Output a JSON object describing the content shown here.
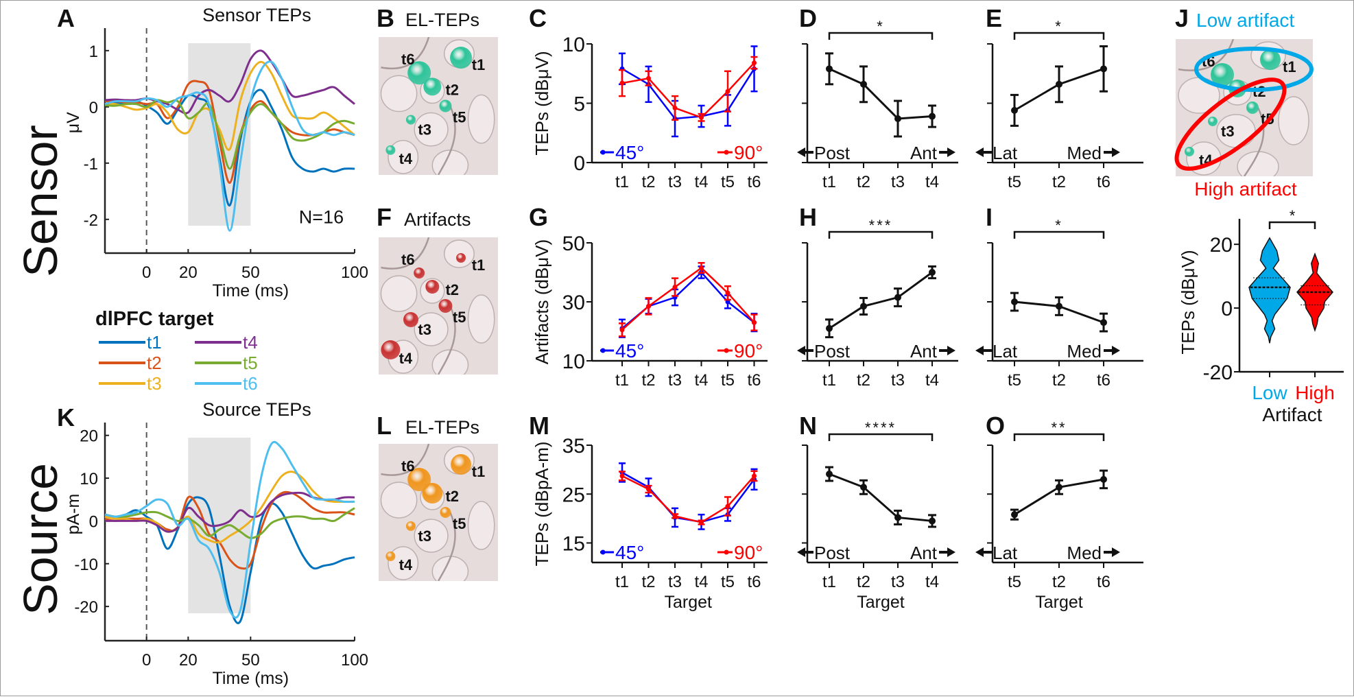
{
  "figure": {
    "row_labels": {
      "sensor": "Sensor",
      "source": "Source"
    },
    "colors": {
      "t1": "#0072BD",
      "t2": "#D95319",
      "t3": "#EDB120",
      "t4": "#7E2F8E",
      "t5": "#77AC30",
      "t6": "#4DBEEE",
      "deg45": "#0000FF",
      "deg90": "#FF0000",
      "low_artifact": "#00A8E8",
      "high_artifact": "#FF0000",
      "teps_sphere": "#2EC49A",
      "artifact_sphere": "#C83232",
      "source_sphere": "#F0961E",
      "shade": "#E3E3E3",
      "brain_surface": "#E2D6D6"
    },
    "legend": {
      "title": "dlPFC target",
      "items": [
        "t1",
        "t4",
        "t2",
        "t5",
        "t3",
        "t6"
      ]
    },
    "brain_panels": {
      "B": {
        "letter": "B",
        "title": "EL-TEPs",
        "targets": [
          "t1",
          "t2",
          "t3",
          "t4",
          "t5",
          "t6"
        ]
      },
      "F": {
        "letter": "F",
        "title": "Artifacts",
        "targets": [
          "t1",
          "t2",
          "t3",
          "t4",
          "t5",
          "t6"
        ]
      },
      "L": {
        "letter": "L",
        "title": "EL-TEPs",
        "targets": [
          "t1",
          "t2",
          "t3",
          "t4",
          "t5",
          "t6"
        ]
      },
      "J": {
        "letter": "J",
        "title_low": "Low artifact",
        "title_high": "High artifact",
        "targets": [
          "t1",
          "t2",
          "t3",
          "t4",
          "t5",
          "t6"
        ]
      }
    }
  },
  "chart_data": [
    {
      "id": "A",
      "type": "line",
      "title": "Sensor TEPs",
      "xlabel": "Time (ms)",
      "ylabel": "μV",
      "xlim": [
        -20,
        100
      ],
      "ylim": [
        -2.6,
        1.4
      ],
      "xticks": [
        0,
        20,
        50,
        100
      ],
      "yticks": [
        -2,
        -1,
        0,
        1
      ],
      "shaded_window": [
        20,
        50
      ],
      "stim_line_x": 0,
      "annotation": "N=16",
      "x": [
        -20,
        -15,
        -10,
        -5,
        0,
        5,
        10,
        15,
        20,
        25,
        30,
        35,
        40,
        45,
        50,
        55,
        60,
        65,
        70,
        75,
        80,
        85,
        90,
        95,
        100
      ],
      "series": [
        {
          "name": "t1",
          "values": [
            0.05,
            0.08,
            0.06,
            0.1,
            0.02,
            -0.1,
            -0.3,
            -0.05,
            0.2,
            0.15,
            0.0,
            -0.9,
            -1.75,
            -0.6,
            0.1,
            0.3,
            0.0,
            -0.4,
            -0.9,
            -1.1,
            -1.15,
            -1.1,
            -1.15,
            -1.1,
            -1.1
          ]
        },
        {
          "name": "t2",
          "values": [
            0.1,
            0.1,
            0.08,
            0.08,
            0.05,
            0.05,
            -0.2,
            0.0,
            0.4,
            0.45,
            0.3,
            -0.6,
            -1.35,
            -0.5,
            -0.05,
            0.1,
            -0.1,
            -0.3,
            -0.45,
            -0.5,
            -0.5,
            -0.45,
            -0.4,
            -0.45,
            -0.5
          ]
        },
        {
          "name": "t3",
          "values": [
            0.05,
            0.05,
            0.0,
            -0.05,
            -0.02,
            0.05,
            -0.1,
            -0.4,
            -0.45,
            -0.1,
            -0.05,
            -0.4,
            -0.75,
            0.1,
            0.6,
            0.8,
            0.6,
            0.2,
            -0.15,
            -0.2,
            -0.2,
            -0.1,
            -0.2,
            -0.35,
            -0.5
          ]
        },
        {
          "name": "t4",
          "values": [
            0.12,
            0.13,
            0.12,
            0.12,
            0.15,
            0.1,
            0.05,
            -0.05,
            -0.1,
            0.2,
            0.3,
            0.2,
            0.1,
            0.4,
            0.85,
            1.0,
            0.8,
            0.5,
            0.2,
            0.2,
            0.25,
            0.3,
            0.35,
            0.2,
            0.05
          ]
        },
        {
          "name": "t5",
          "values": [
            0.03,
            0.02,
            0.05,
            0.05,
            0.0,
            0.12,
            0.08,
            0.1,
            -0.2,
            -0.1,
            0.05,
            -0.5,
            -1.1,
            -0.5,
            -0.1,
            0.05,
            -0.1,
            -0.3,
            -0.55,
            -0.6,
            -0.55,
            -0.45,
            -0.3,
            -0.25,
            -0.3
          ]
        },
        {
          "name": "t6",
          "values": [
            0.05,
            0.1,
            0.1,
            0.1,
            0.15,
            0.12,
            0.0,
            0.15,
            0.2,
            0.25,
            0.05,
            -1.0,
            -2.2,
            -1.0,
            0.1,
            0.65,
            0.8,
            0.5,
            0.0,
            -0.4,
            -0.5,
            -0.45,
            -0.5,
            -0.45,
            -0.5
          ]
        }
      ]
    },
    {
      "id": "K",
      "type": "line",
      "title": "Source TEPs",
      "xlabel": "Time (ms)",
      "ylabel": "pA-m",
      "xlim": [
        -20,
        100
      ],
      "ylim": [
        -28,
        23
      ],
      "xticks": [
        0,
        20,
        50,
        100
      ],
      "yticks": [
        -20,
        -10,
        0,
        10,
        20
      ],
      "shaded_window": [
        20,
        50
      ],
      "stim_line_x": 0,
      "x": [
        -20,
        -15,
        -10,
        -5,
        0,
        5,
        10,
        15,
        20,
        25,
        30,
        35,
        40,
        45,
        50,
        55,
        60,
        65,
        70,
        75,
        80,
        85,
        90,
        95,
        100
      ],
      "series": [
        {
          "name": "t1",
          "values": [
            1.5,
            1.0,
            1.5,
            2.5,
            1.0,
            -1.0,
            -6.5,
            -2.0,
            4.0,
            5.5,
            3.0,
            -8.0,
            -20.0,
            -23.5,
            -12.0,
            0.0,
            4.0,
            2.0,
            -3.0,
            -8.0,
            -11.0,
            -10.5,
            -10.0,
            -9.0,
            -8.5
          ]
        },
        {
          "name": "t2",
          "values": [
            0.5,
            0.0,
            0.5,
            0.5,
            0.5,
            -0.5,
            -2.0,
            -1.5,
            5.5,
            3.0,
            -3.0,
            -5.0,
            -9.0,
            -11.0,
            -10.0,
            -2.0,
            4.0,
            6.5,
            6.5,
            5.0,
            3.0,
            2.0,
            2.0,
            2.0,
            1.5
          ]
        },
        {
          "name": "t3",
          "values": [
            1.0,
            0.5,
            0.5,
            0.0,
            0.5,
            -0.5,
            -2.5,
            -1.5,
            1.0,
            -3.0,
            -4.5,
            -5.0,
            -3.5,
            -2.0,
            0.0,
            3.0,
            7.0,
            10.5,
            11.5,
            10.0,
            7.0,
            5.0,
            4.5,
            4.5,
            4.5
          ]
        },
        {
          "name": "t4",
          "values": [
            0.0,
            0.0,
            0.0,
            0.0,
            0.0,
            -1.0,
            -2.5,
            -1.5,
            3.0,
            1.0,
            -1.0,
            -1.0,
            0.0,
            2.5,
            1.0,
            1.5,
            4.5,
            6.0,
            6.5,
            6.5,
            5.5,
            5.0,
            5.0,
            5.5,
            5.5
          ]
        },
        {
          "name": "t5",
          "values": [
            1.5,
            1.0,
            1.0,
            1.5,
            2.0,
            2.0,
            1.0,
            0.0,
            0.5,
            -1.0,
            -3.5,
            -2.0,
            -1.0,
            -2.5,
            -4.0,
            -3.0,
            -0.5,
            0.5,
            1.0,
            1.0,
            0.5,
            0.5,
            0.0,
            1.5,
            3.0
          ]
        },
        {
          "name": "t6",
          "values": [
            1.5,
            1.0,
            1.5,
            2.0,
            3.5,
            5.0,
            4.0,
            -1.0,
            0.5,
            -4.5,
            -6.5,
            -12.0,
            -21.0,
            -21.0,
            -5.0,
            10.0,
            18.0,
            17.0,
            13.0,
            9.0,
            5.5,
            5.0,
            5.0,
            4.5,
            4.5
          ]
        }
      ]
    },
    {
      "id": "C",
      "type": "line",
      "ylabel": "TEPs (dBμV)",
      "categories": [
        "t1",
        "t2",
        "t3",
        "t4",
        "t5",
        "t6"
      ],
      "ylim": [
        0,
        10
      ],
      "yticks": [
        0,
        5,
        10
      ],
      "legend": [
        "45°",
        "90°"
      ],
      "series": [
        {
          "name": "45°",
          "values": [
            7.9,
            6.6,
            3.7,
            3.9,
            4.4,
            7.9
          ],
          "err": [
            1.3,
            1.5,
            1.5,
            0.9,
            1.3,
            1.9
          ]
        },
        {
          "name": "90°",
          "values": [
            6.7,
            7.1,
            4.6,
            3.8,
            6.0,
            8.4
          ],
          "err": [
            1.1,
            0.6,
            1.0,
            0.3,
            1.7,
            0.5
          ]
        }
      ]
    },
    {
      "id": "G",
      "type": "line",
      "ylabel": "Artifacts (dBμV)",
      "categories": [
        "t1",
        "t2",
        "t3",
        "t4",
        "t5",
        "t6"
      ],
      "ylim": [
        10,
        50
      ],
      "yticks": [
        10,
        30,
        50
      ],
      "legend": [
        "45°",
        "90°"
      ],
      "series": [
        {
          "name": "45°",
          "values": [
            21.0,
            28.5,
            31.5,
            40.0,
            30.0,
            23.0
          ],
          "err": [
            3.0,
            2.5,
            2.7,
            2.0,
            2.2,
            3.0
          ]
        },
        {
          "name": "90°",
          "values": [
            20.5,
            28.5,
            35.0,
            41.5,
            33.0,
            23.0
          ],
          "err": [
            2.2,
            2.8,
            3.0,
            1.7,
            2.3,
            2.7
          ]
        }
      ]
    },
    {
      "id": "M",
      "type": "line",
      "ylabel": "TEPs (dBpA-m)",
      "xlabel": "Target",
      "categories": [
        "t1",
        "t2",
        "t3",
        "t4",
        "t5",
        "t6"
      ],
      "ylim": [
        11,
        35
      ],
      "yticks": [
        15,
        25,
        35
      ],
      "legend": [
        "45°",
        "90°"
      ],
      "series": [
        {
          "name": "45°",
          "values": [
            29.4,
            26.4,
            20.2,
            19.3,
            20.8,
            28.0
          ],
          "err": [
            1.9,
            1.8,
            1.9,
            1.5,
            1.3,
            2.1
          ]
        },
        {
          "name": "90°",
          "values": [
            28.7,
            26.0,
            20.5,
            19.2,
            22.5,
            28.7
          ],
          "err": [
            0.9,
            0.7,
            0.4,
            0.4,
            1.9,
            1.0
          ]
        }
      ]
    },
    {
      "id": "D",
      "type": "line",
      "categories": [
        "t1",
        "t2",
        "t3",
        "t4"
      ],
      "ylim": [
        0,
        10
      ],
      "yticks": [
        0,
        5,
        10
      ],
      "axis_note": [
        "Post",
        "Ant"
      ],
      "significance": "*",
      "values": [
        7.9,
        6.6,
        3.7,
        3.9
      ],
      "err": [
        1.3,
        1.5,
        1.5,
        0.9
      ]
    },
    {
      "id": "E",
      "type": "line",
      "categories": [
        "t5",
        "t2",
        "t6"
      ],
      "ylim": [
        0,
        10
      ],
      "yticks": [
        0,
        5,
        10
      ],
      "axis_note": [
        "Lat",
        "Med"
      ],
      "significance": "*",
      "values": [
        4.4,
        6.6,
        7.9
      ],
      "err": [
        1.3,
        1.5,
        1.9
      ]
    },
    {
      "id": "H",
      "type": "line",
      "categories": [
        "t1",
        "t2",
        "t3",
        "t4"
      ],
      "ylim": [
        10,
        50
      ],
      "yticks": [
        10,
        30,
        50
      ],
      "axis_note": [
        "Post",
        "Ant"
      ],
      "significance": "***",
      "values": [
        21.0,
        28.5,
        31.5,
        40.0
      ],
      "err": [
        3.0,
        2.8,
        3.0,
        2.0
      ]
    },
    {
      "id": "I",
      "type": "line",
      "categories": [
        "t5",
        "t2",
        "t6"
      ],
      "ylim": [
        10,
        50
      ],
      "yticks": [
        10,
        30,
        50
      ],
      "axis_note": [
        "Lat",
        "Med"
      ],
      "significance": "*",
      "values": [
        30.0,
        28.5,
        23.0
      ],
      "err": [
        3.0,
        3.0,
        3.0
      ]
    },
    {
      "id": "N",
      "type": "line",
      "categories": [
        "t1",
        "t2",
        "t3",
        "t4"
      ],
      "ylim": [
        11,
        35
      ],
      "yticks": [
        15,
        25,
        35
      ],
      "xlabel": "Target",
      "axis_note": [
        "Post",
        "Ant"
      ],
      "significance": "****",
      "values": [
        29.1,
        26.4,
        20.2,
        19.5
      ],
      "err": [
        1.4,
        1.4,
        1.4,
        1.2
      ]
    },
    {
      "id": "O",
      "type": "line",
      "categories": [
        "t5",
        "t2",
        "t6"
      ],
      "ylim": [
        11,
        35
      ],
      "yticks": [
        15,
        25,
        35
      ],
      "xlabel": "Target",
      "axis_note": [
        "Lat",
        "Med"
      ],
      "significance": "**",
      "values": [
        20.8,
        26.4,
        28.0
      ],
      "err": [
        1.0,
        1.4,
        1.8
      ]
    },
    {
      "id": "J-violin",
      "type": "violin",
      "ylabel": "TEPs (dBμV)",
      "xlabel": "Artifact",
      "categories": [
        "Low",
        "High"
      ],
      "ylim": [
        -20,
        28
      ],
      "yticks": [
        -20,
        0,
        20
      ],
      "significance": "*",
      "groups": [
        {
          "name": "Low",
          "median": 6.5,
          "q1": 3.0,
          "q3": 9.5,
          "min": -11,
          "max": 22
        },
        {
          "name": "High",
          "median": 5.0,
          "q1": 1.0,
          "q3": 7.0,
          "min": -7,
          "max": 17
        }
      ]
    }
  ]
}
